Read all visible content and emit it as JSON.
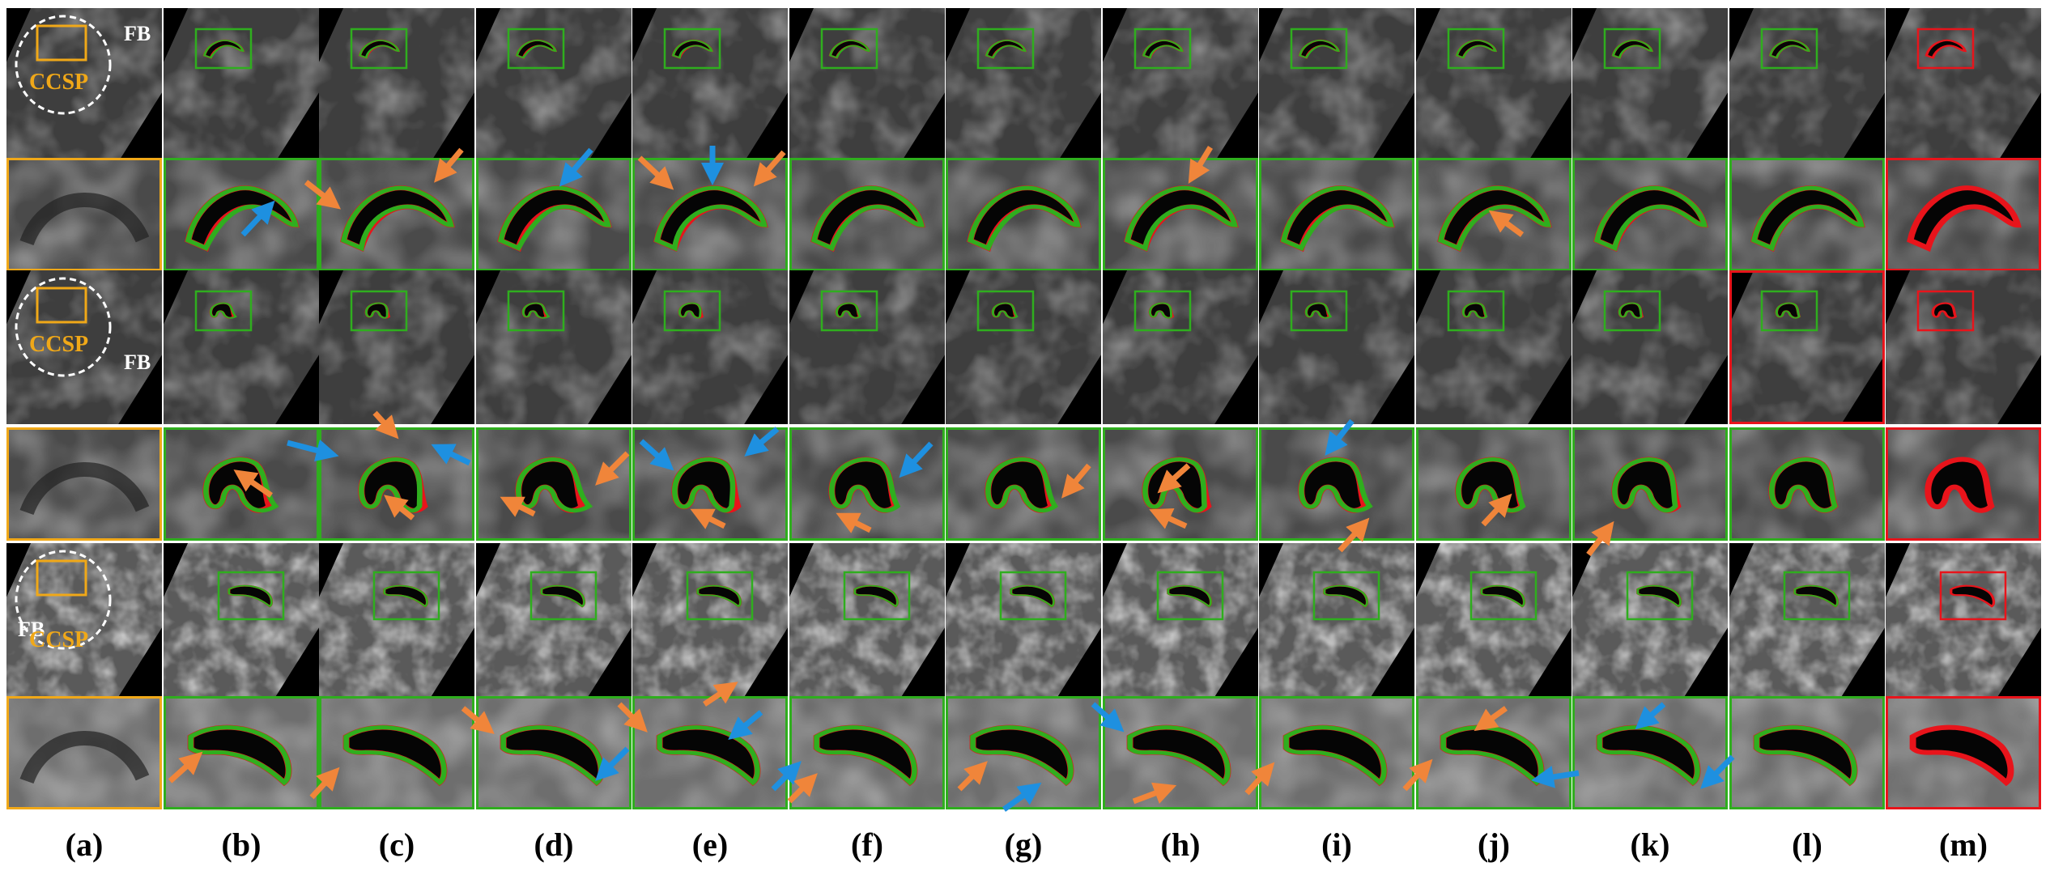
{
  "figure": {
    "anatomy_labels": {
      "region_outer": "FB",
      "region_inner": "CCSP"
    },
    "column_labels": [
      "(a)",
      "(b)",
      "(c)",
      "(d)",
      "(e)",
      "(f)",
      "(g)",
      "(h)",
      "(i)",
      "(j)",
      "(k)",
      "(l)",
      "(m)"
    ],
    "legend_colors": {
      "prediction_contour": "#2fae1e",
      "ground_truth_contour": "#e8141b",
      "region_box_input": "#f0a818",
      "arrow_over_segmentation": "#f0853a",
      "arrow_under_segmentation": "#1e90e0"
    }
  }
}
